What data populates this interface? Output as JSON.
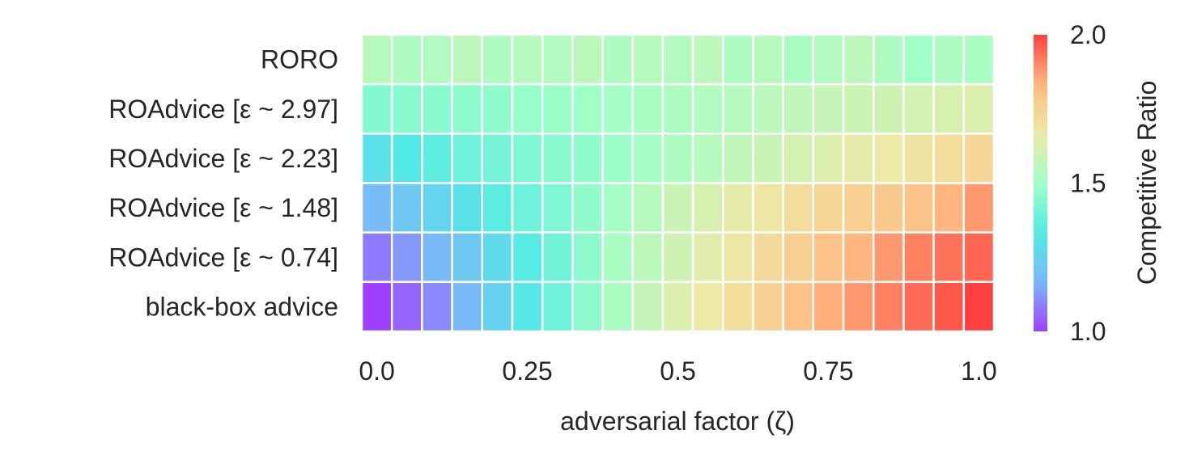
{
  "chart_data": {
    "type": "heatmap",
    "xlabel": "adversarial factor (ζ)",
    "x_tick_labels": [
      "0.0",
      "0.25",
      "0.5",
      "0.75",
      "1.0"
    ],
    "x_tick_values": [
      0.0,
      0.25,
      0.5,
      0.75,
      1.0
    ],
    "x": [
      0.0,
      0.05,
      0.1,
      0.15,
      0.2,
      0.25,
      0.3,
      0.35,
      0.4,
      0.45,
      0.5,
      0.55,
      0.6,
      0.65,
      0.7,
      0.75,
      0.8,
      0.85,
      0.9,
      0.95,
      1.0
    ],
    "rows": [
      "RORO",
      "ROAdvice [ε ~ 2.97]",
      "ROAdvice [ε ~ 2.23]",
      "ROAdvice [ε ~ 1.48]",
      "ROAdvice [ε ~ 0.74]",
      "black-box advice"
    ],
    "values": [
      [
        1.55,
        1.53,
        1.54,
        1.56,
        1.53,
        1.55,
        1.54,
        1.56,
        1.53,
        1.55,
        1.54,
        1.56,
        1.53,
        1.55,
        1.52,
        1.54,
        1.56,
        1.53,
        1.5,
        1.53,
        1.52
      ],
      [
        1.44,
        1.45,
        1.45,
        1.46,
        1.47,
        1.48,
        1.49,
        1.5,
        1.51,
        1.52,
        1.53,
        1.54,
        1.55,
        1.56,
        1.57,
        1.58,
        1.59,
        1.6,
        1.61,
        1.62,
        1.63
      ],
      [
        1.3,
        1.33,
        1.36,
        1.39,
        1.41,
        1.43,
        1.45,
        1.47,
        1.49,
        1.51,
        1.53,
        1.55,
        1.57,
        1.59,
        1.61,
        1.63,
        1.65,
        1.67,
        1.69,
        1.71,
        1.73
      ],
      [
        1.18,
        1.22,
        1.26,
        1.3,
        1.35,
        1.39,
        1.43,
        1.47,
        1.51,
        1.55,
        1.59,
        1.62,
        1.65,
        1.68,
        1.71,
        1.74,
        1.76,
        1.78,
        1.8,
        1.84,
        1.88
      ],
      [
        1.08,
        1.12,
        1.17,
        1.22,
        1.28,
        1.34,
        1.4,
        1.46,
        1.52,
        1.56,
        1.6,
        1.64,
        1.68,
        1.72,
        1.76,
        1.8,
        1.84,
        1.88,
        1.91,
        1.93,
        1.95
      ],
      [
        1.0,
        1.05,
        1.1,
        1.17,
        1.25,
        1.32,
        1.39,
        1.46,
        1.52,
        1.58,
        1.63,
        1.67,
        1.71,
        1.75,
        1.8,
        1.85,
        1.88,
        1.91,
        1.94,
        1.97,
        2.0
      ]
    ],
    "colorbar": {
      "label": "Competitive Ratio",
      "vmin": 1.0,
      "vmax": 2.0,
      "tick_labels": [
        "1.0",
        "1.5",
        "2.0"
      ],
      "tick_values": [
        1.0,
        1.5,
        2.0
      ],
      "colormap": "rainbow",
      "color_stops": [
        "#8000ff",
        "#4da1f6",
        "#1ae4dc",
        "#80ffb4",
        "#e6e38a",
        "#ffa256",
        "#ff0000"
      ]
    },
    "grid": false
  }
}
